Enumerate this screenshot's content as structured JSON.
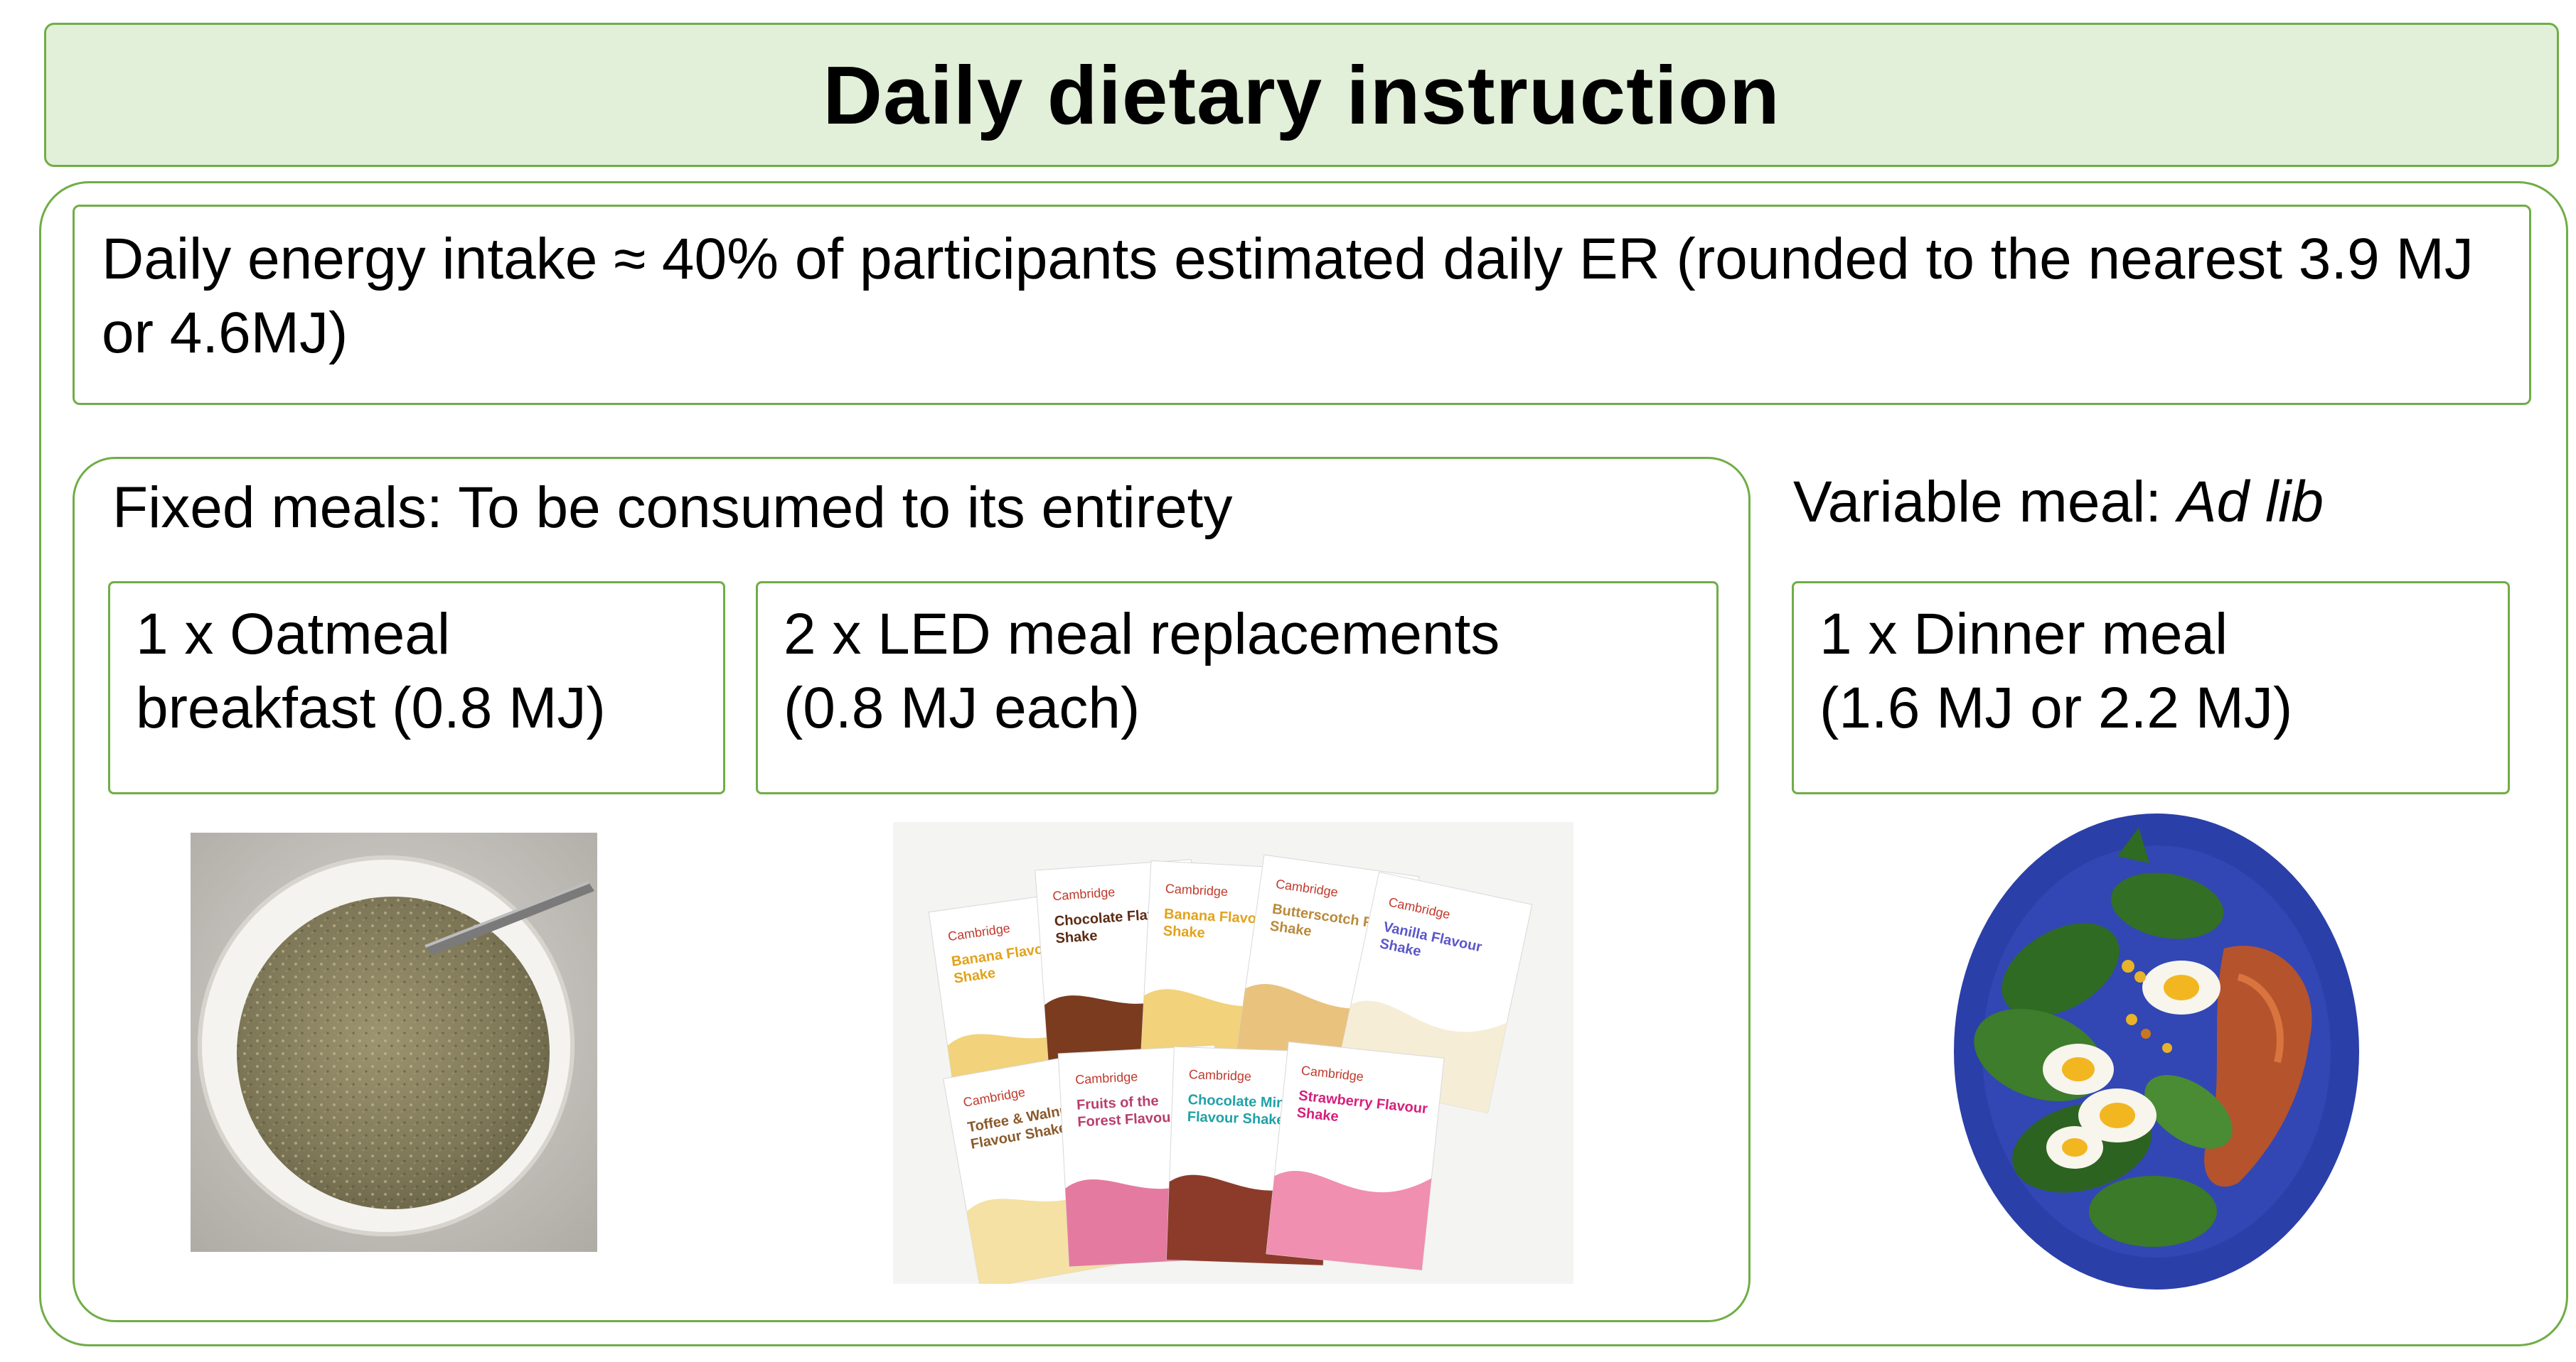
{
  "title": "Daily dietary instruction",
  "energy_note": "Daily energy intake ≈ 40% of participants estimated daily ER (rounded to the nearest 3.9 MJ or 4.6MJ)",
  "fixed_heading": "Fixed meals: To be consumed to its entirety",
  "variable_heading_prefix": "Variable meal: ",
  "variable_heading_italic": "Ad lib",
  "meals": [
    {
      "line1": "1 x Oatmeal",
      "line2": "breakfast (0.8 MJ)"
    },
    {
      "line1": "2 x LED meal replacements",
      "line2": "(0.8 MJ each)"
    },
    {
      "line1": "1 x Dinner meal",
      "line2": "(1.6 MJ or 2.2 MJ)"
    }
  ],
  "sachet_labels": [
    "Banana Flavour Shake",
    "Chocolate Flavour Shake",
    "Banana Flavour Shake",
    "Butterscotch Flavour Shake",
    "Vanilla Flavour Shake",
    "Toffee & Walnut Flavour Shake",
    "Fruits of the Forest Flavour Shake",
    "Chocolate Mint Flavour Shake",
    "Strawberry Flavour Shake"
  ],
  "brand": "Cambridge"
}
